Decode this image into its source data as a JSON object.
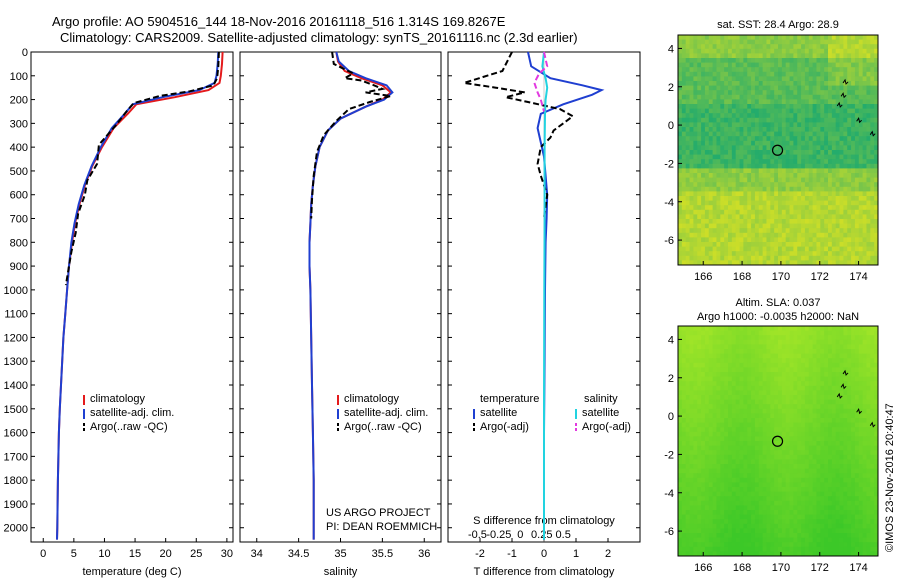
{
  "header": {
    "line1": "Argo profile: AO 5904516_144 18-Nov-2016 20161118_516 1.314S 169.8267E",
    "line2": "Climatology: CARS2009. Satellite-adjusted climatology: synTS_20161116.nc (2.3d earlier)"
  },
  "credit": {
    "project": "US ARGO PROJECT",
    "pi": "PI: DEAN ROEMMICH",
    "imos": "©IMOS 23-Nov-2016 20:40:47"
  },
  "colors": {
    "climatology": "#e41a1c",
    "satellite": "#1f3fd1",
    "argo": "#000000",
    "salinity_satellite": "#22d3e0",
    "salinity_argo": "#e23ae0"
  },
  "chart_data": [
    {
      "type": "line",
      "id": "temperature",
      "xlabel": "temperature (deg C)",
      "xlim": [
        -2,
        31
      ],
      "xticks": [
        0,
        5,
        10,
        15,
        20,
        25,
        30
      ],
      "ylim": [
        2060,
        0
      ],
      "yticks": [
        0,
        100,
        200,
        300,
        400,
        500,
        600,
        700,
        800,
        900,
        1000,
        1100,
        1200,
        1300,
        1400,
        1500,
        1600,
        1700,
        1800,
        1900,
        2000
      ],
      "legend": [
        "climatology",
        "satellite-adj. clim.",
        "Argo(..raw -QC)"
      ],
      "series": [
        {
          "name": "climatology",
          "x": [
            29.3,
            29.2,
            29.0,
            28.8,
            27.0,
            21.5,
            15.2,
            13.8,
            11.5,
            9.6,
            8.0,
            6.8,
            5.9,
            5.2,
            4.7,
            4.2,
            3.9,
            3.6,
            3.3,
            3.1,
            2.9,
            2.7,
            2.55,
            2.4,
            2.3,
            2.25
          ],
          "y": [
            0,
            50,
            100,
            130,
            160,
            190,
            220,
            260,
            320,
            400,
            480,
            560,
            640,
            720,
            800,
            900,
            1000,
            1100,
            1200,
            1300,
            1400,
            1500,
            1600,
            1800,
            2000,
            2050
          ]
        },
        {
          "name": "satellite-adj. clim.",
          "x": [
            28.6,
            28.5,
            28.3,
            28.0,
            25.5,
            19.5,
            14.6,
            13.3,
            11.2,
            9.4,
            7.9,
            6.7,
            5.8,
            5.1,
            4.6,
            4.2,
            3.9,
            3.6,
            3.3,
            3.1,
            2.9,
            2.7,
            2.55,
            2.4,
            2.3,
            2.25
          ],
          "y": [
            0,
            50,
            100,
            130,
            160,
            190,
            220,
            260,
            320,
            400,
            480,
            560,
            640,
            720,
            800,
            900,
            1000,
            1100,
            1200,
            1300,
            1400,
            1500,
            1600,
            1800,
            2000,
            2050
          ]
        },
        {
          "name": "Argo(..raw -QC)",
          "x": [
            28.7,
            28.6,
            28.4,
            27.8,
            24.0,
            19.0,
            14.8,
            13.6,
            11.8,
            9.1,
            8.8,
            7.2,
            6.8,
            5.7,
            5.3,
            4.6,
            4.2,
            3.7
          ],
          "y": [
            0,
            60,
            110,
            140,
            165,
            185,
            215,
            250,
            310,
            390,
            470,
            540,
            600,
            680,
            760,
            840,
            900,
            980
          ]
        }
      ]
    },
    {
      "type": "line",
      "id": "salinity",
      "xlabel": "salinity",
      "xlim": [
        33.8,
        36.2
      ],
      "xticks": [
        34,
        34.5,
        35,
        35.5,
        36
      ],
      "ylim": [
        2060,
        0
      ],
      "legend": [
        "climatology",
        "satellite-adj. clim.",
        "Argo(..raw -QC)"
      ],
      "series": [
        {
          "name": "climatology",
          "x": [
            34.95,
            34.97,
            35.05,
            35.25,
            35.5,
            35.6,
            35.5,
            35.3,
            35.0,
            34.85,
            34.75,
            34.7,
            34.67,
            34.65,
            34.64,
            34.63,
            34.63,
            34.64,
            34.65,
            34.66,
            34.67,
            34.68,
            34.68
          ],
          "y": [
            0,
            40,
            80,
            110,
            140,
            170,
            200,
            230,
            280,
            330,
            400,
            480,
            560,
            640,
            720,
            800,
            900,
            1000,
            1200,
            1400,
            1600,
            1800,
            2050
          ]
        },
        {
          "name": "satellite-adj. clim.",
          "x": [
            34.95,
            34.98,
            35.1,
            35.3,
            35.55,
            35.62,
            35.52,
            35.3,
            35.0,
            34.85,
            34.75,
            34.7,
            34.67,
            34.65,
            34.64,
            34.63,
            34.63,
            34.64,
            34.65,
            34.66,
            34.67,
            34.68,
            34.68
          ],
          "y": [
            0,
            40,
            80,
            110,
            140,
            170,
            200,
            230,
            280,
            330,
            400,
            480,
            560,
            640,
            720,
            800,
            900,
            1000,
            1200,
            1400,
            1600,
            1800,
            2050
          ]
        },
        {
          "name": "Argo(..raw -QC)",
          "x": [
            34.9,
            34.92,
            35.15,
            35.05,
            35.25,
            35.4,
            35.5,
            35.3,
            35.6,
            35.35,
            35.1,
            34.95,
            34.8,
            34.72,
            34.68,
            34.66,
            34.65
          ],
          "y": [
            0,
            50,
            90,
            110,
            120,
            140,
            155,
            170,
            185,
            210,
            240,
            290,
            350,
            420,
            520,
            620,
            700
          ]
        }
      ]
    },
    {
      "type": "line",
      "id": "difference",
      "xlabel": "T difference from climatology",
      "xlabel_top": "S difference from climatology",
      "xlim": [
        -3,
        3
      ],
      "xticks_bottom": [
        -2,
        -1,
        0,
        1,
        2
      ],
      "xticklabels_bottom": [
        "-2",
        "-1",
        "0",
        "1",
        "2"
      ],
      "xticks_top": [
        -0.5,
        -0.25,
        0,
        0.25,
        0.5
      ],
      "ylim": [
        2060,
        0
      ],
      "legend_left": [
        "temperature",
        "satellite",
        "Argo(-adj)"
      ],
      "legend_right": [
        "salinity",
        "satellite",
        "Argo(-adj)"
      ],
      "series": [
        {
          "name": "T satellite",
          "x": [
            -0.5,
            -0.4,
            0.2,
            1.2,
            1.8,
            1.5,
            0.6,
            -0.1,
            -0.2,
            -0.1,
            0.0,
            0.05,
            0.1,
            0.08,
            0.05,
            0.03,
            0.02,
            0.0,
            0.0
          ],
          "y": [
            0,
            60,
            110,
            140,
            160,
            180,
            220,
            260,
            320,
            380,
            440,
            520,
            600,
            700,
            800,
            1000,
            1300,
            1600,
            2050
          ]
        },
        {
          "name": "T Argo(-adj)",
          "x": [
            -1.0,
            -1.3,
            -2.5,
            -1.5,
            -0.6,
            -1.2,
            -0.5,
            0.5,
            0.9,
            0.6,
            0.3,
            0.2,
            -0.1,
            -0.2,
            -0.1,
            0.1,
            0.0
          ],
          "y": [
            0,
            80,
            130,
            150,
            170,
            190,
            210,
            240,
            270,
            300,
            330,
            360,
            400,
            470,
            520,
            600,
            700
          ]
        },
        {
          "name": "S satellite",
          "x": [
            0.0,
            -0.05,
            0.05,
            0.1,
            0.05,
            0.03,
            0.02,
            0.02,
            0.01,
            0.0,
            0.0
          ],
          "y": [
            0,
            60,
            110,
            150,
            200,
            260,
            400,
            700,
            1000,
            1500,
            2050
          ]
        },
        {
          "name": "S Argo(-adj)",
          "x": [
            0.0,
            0.1,
            -0.15,
            -0.3,
            -0.2,
            -0.1,
            0.0
          ],
          "y": [
            0,
            60,
            90,
            130,
            170,
            200,
            250
          ]
        }
      ]
    },
    {
      "type": "heatmap",
      "id": "sst-map",
      "title": "sat. SST: 28.4  Argo: 28.9",
      "xlim": [
        164.7,
        175
      ],
      "xticks": [
        166,
        168,
        170,
        172,
        174
      ],
      "ylim": [
        -7.3,
        4.7
      ],
      "yticks": [
        -6,
        -4,
        -2,
        0,
        2,
        4
      ],
      "marker": {
        "lon": 169.8267,
        "lat": -1.314
      }
    },
    {
      "type": "heatmap",
      "id": "sla-map",
      "title": "Altim. SLA: 0.037",
      "subtitle": "Argo h1000: -0.0035 h2000: NaN",
      "xlim": [
        164.7,
        175
      ],
      "xticks": [
        166,
        168,
        170,
        172,
        174
      ],
      "ylim": [
        -7.3,
        4.7
      ],
      "yticks": [
        -6,
        -4,
        -2,
        0,
        2,
        4
      ],
      "marker": {
        "lon": 169.8267,
        "lat": -1.314
      }
    }
  ]
}
